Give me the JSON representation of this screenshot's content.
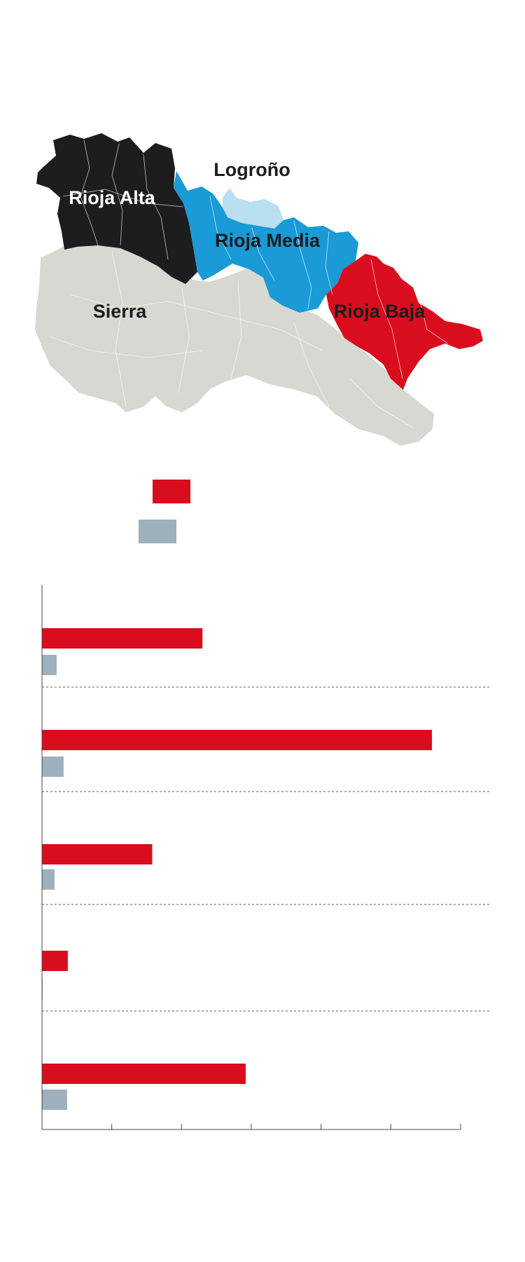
{
  "map": {
    "labels": {
      "rioja_alta": "Rioja Alta",
      "logrono": "Logroño",
      "rioja_media": "Rioja Media",
      "sierra": "Sierra",
      "rioja_baja": "Rioja Baja"
    },
    "colors": {
      "rioja_alta": "#1d1c1e",
      "logrono": "#b9dff1",
      "rioja_media": "#1a9ad6",
      "sierra": "#d8d8d2",
      "rioja_baja": "#d90d1e"
    }
  },
  "legend": [
    {
      "color": "#d90d1e"
    },
    {
      "color": "#9db0bc"
    }
  ],
  "chart_data": {
    "type": "bar",
    "orientation": "horizontal",
    "categories": [
      "",
      "",
      "",
      "",
      ""
    ],
    "series": [
      {
        "color": "#d90d1e",
        "values": [
          2.3,
          5.59,
          1.58,
          0.37,
          2.92
        ]
      },
      {
        "color": "#9db0bc",
        "values": [
          0.21,
          0.31,
          0.18,
          0.01,
          0.36
        ]
      }
    ],
    "xlim": [
      0,
      6
    ],
    "grid": "dashed separators between categories",
    "legend_position": "above chart"
  }
}
